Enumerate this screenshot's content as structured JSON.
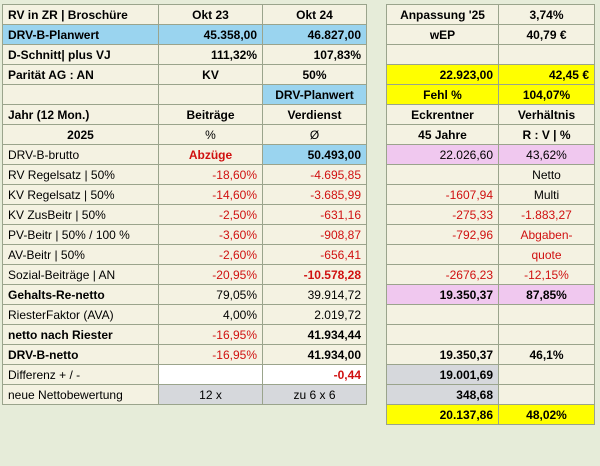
{
  "left": {
    "header": {
      "title": "RV in ZR | Broschüre",
      "col1": "Okt 23",
      "col2": "Okt 24"
    },
    "rows": [
      {
        "label": "DRV-B-Planwert",
        "v1": "45.358,00",
        "v2": "46.827,00"
      },
      {
        "label": "D-Schnitt| plus VJ",
        "v1": "111,32%",
        "v2": "107,83%"
      },
      {
        "label": "Parität AG : AN",
        "v1": "KV",
        "v2": "50%"
      },
      {
        "label": "",
        "v1": "",
        "v2": "DRV-Planwert"
      },
      {
        "label": "Jahr (12 Mon.)",
        "v1": "Beiträge",
        "v2": "Verdienst"
      },
      {
        "label": "2025",
        "v1": "%",
        "v2": "Ø"
      },
      {
        "label": "DRV-B-brutto",
        "v1": "Abzüge",
        "v2": "50.493,00"
      },
      {
        "label": "RV Regelsatz | 50%",
        "v1": "-18,60%",
        "v2": "-4.695,85"
      },
      {
        "label": "KV Regelsatz | 50%",
        "v1": "-14,60%",
        "v2": "-3.685,99"
      },
      {
        "label": "KV ZusBeitr | 50%",
        "v1": "-2,50%",
        "v2": "-631,16"
      },
      {
        "label": "PV-Beitr | 50% / 100 %",
        "v1": "-3,60%",
        "v2": "-908,87"
      },
      {
        "label": "AV-Beitr | 50%",
        "v1": "-2,60%",
        "v2": "-656,41"
      },
      {
        "label": "Sozial-Beiträge | AN",
        "v1": "-20,95%",
        "v2": "-10.578,28"
      },
      {
        "label": "Gehalts-Re-netto",
        "v1": "79,05%",
        "v2": "39.914,72"
      },
      {
        "label": "RiesterFaktor (AVA)",
        "v1": "4,00%",
        "v2": "2.019,72"
      },
      {
        "label": "netto nach Riester",
        "v1": "-16,95%",
        "v2": "41.934,44"
      },
      {
        "label": "DRV-B-netto",
        "v1": "-16,95%",
        "v2": "41.934,00"
      },
      {
        "label": "Differenz + / -",
        "v1": "",
        "v2": "-0,44"
      },
      {
        "label": "neue Nettobewertung",
        "v1": "12 x",
        "v2": "zu 6 x 6"
      }
    ]
  },
  "right": {
    "top": [
      {
        "a": "Anpassung '25",
        "b": "3,74%"
      },
      {
        "a": "wEP",
        "b": "40,79 €"
      }
    ],
    "rows": [
      {
        "a": "",
        "b": ""
      },
      {
        "a": "22.923,00",
        "b": "42,45 €"
      },
      {
        "a": "Fehl %",
        "b": "104,07%"
      },
      {
        "a": "Eckrentner",
        "b": "Verhältnis"
      },
      {
        "a": "45 Jahre",
        "b": "R : V | %"
      },
      {
        "a": "22.026,60",
        "b": "43,62%"
      },
      {
        "a": "",
        "b": "Netto"
      },
      {
        "a": "-1607,94",
        "b": "Multi"
      },
      {
        "a": "-275,33",
        "b": "-1.883,27"
      },
      {
        "a": "-792,96",
        "b": "Abgaben-"
      },
      {
        "a": "",
        "b": "quote"
      },
      {
        "a": "-2676,23",
        "b": "-12,15%"
      },
      {
        "a": "19.350,37",
        "b": "87,85%"
      },
      {
        "a": "",
        "b": ""
      },
      {
        "a": "",
        "b": ""
      },
      {
        "a": "19.350,37",
        "b": "46,1%"
      },
      {
        "a": "19.001,69",
        "b": ""
      },
      {
        "a": "348,68",
        "b": ""
      },
      {
        "a": "20.137,86",
        "b": "48,02%"
      }
    ]
  }
}
